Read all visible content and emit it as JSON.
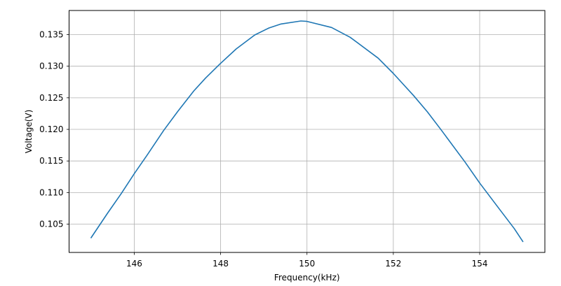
{
  "chart_data": {
    "type": "line",
    "title": "",
    "xlabel": "Frequency(kHz)",
    "ylabel": "Voltage(V)",
    "xlim": [
      144.49,
      155.51
    ],
    "ylim": [
      0.10052,
      0.13882
    ],
    "xticks": [
      146,
      148,
      150,
      152,
      154
    ],
    "xtick_labels": [
      "146",
      "148",
      "150",
      "152",
      "154"
    ],
    "yticks": [
      0.105,
      0.11,
      0.115,
      0.12,
      0.125,
      0.13,
      0.135
    ],
    "ytick_labels": [
      "0.105",
      "0.110",
      "0.115",
      "0.120",
      "0.125",
      "0.130",
      "0.135"
    ],
    "grid": true,
    "legend": "none",
    "colors": {
      "line": "#1f77b4",
      "grid": "#b0b0b0",
      "axes": "#000000"
    },
    "series": [
      {
        "x": [
          145.0,
          145.38,
          145.7,
          146.0,
          146.3,
          146.68,
          147.0,
          147.38,
          147.65,
          147.98,
          148.36,
          148.79,
          149.12,
          149.4,
          149.86,
          150.0,
          150.57,
          151.0,
          151.65,
          152.0,
          152.47,
          152.79,
          153.12,
          153.66,
          154.0,
          154.43,
          154.8,
          155.0
        ],
        "y": [
          0.10284,
          0.10672,
          0.10985,
          0.11299,
          0.11594,
          0.11981,
          0.12277,
          0.12609,
          0.12812,
          0.13033,
          0.13273,
          0.13495,
          0.13605,
          0.13668,
          0.13716,
          0.13709,
          0.13613,
          0.13458,
          0.13127,
          0.12886,
          0.12535,
          0.12277,
          0.11981,
          0.11483,
          0.11151,
          0.10763,
          0.10431,
          0.10225
        ]
      }
    ]
  }
}
